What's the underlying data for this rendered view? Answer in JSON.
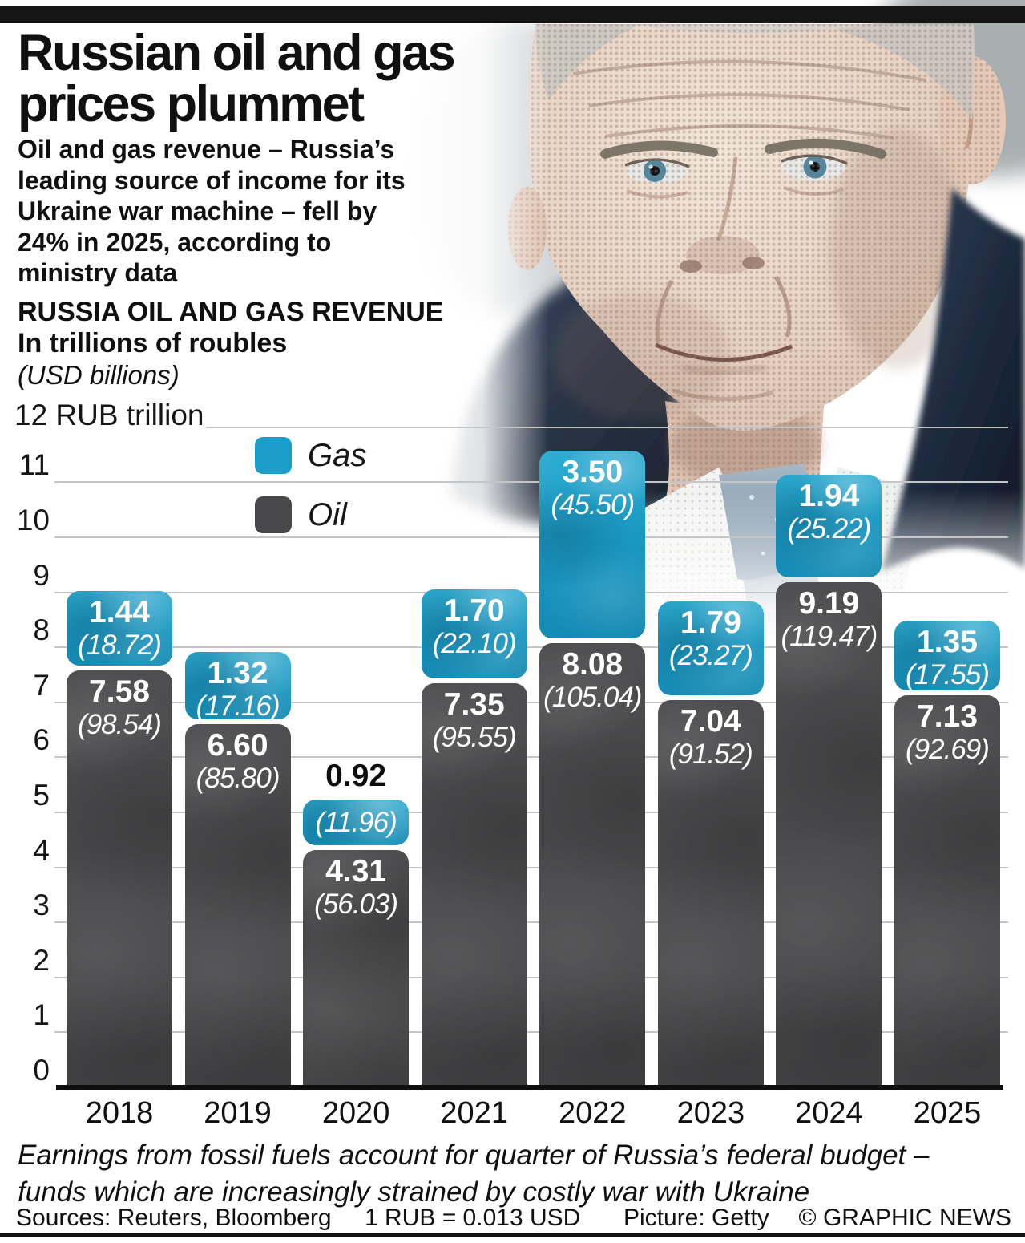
{
  "masthead": {
    "title_line1": "Russian oil and gas",
    "title_line2": "prices plummet",
    "intro_lines": [
      "Oil and gas revenue – Russia’s",
      "leading source of income for its",
      "Ukraine war machine – fell by",
      "24% in 2025, according to",
      "ministry data"
    ]
  },
  "chart_data": {
    "type": "bar",
    "stacked": true,
    "title": "RUSSIA OIL AND GAS REVENUE",
    "unit": "In trillions of roubles",
    "unit_secondary": "(USD billions)",
    "y_axis_top_label": "12 RUB trillion",
    "ylim": [
      0,
      12
    ],
    "y_ticks": [
      0,
      1,
      2,
      3,
      4,
      5,
      6,
      7,
      8,
      9,
      10,
      11,
      12
    ],
    "grid": true,
    "legend_position": "inside-top-left",
    "categories": [
      "2018",
      "2019",
      "2020",
      "2021",
      "2022",
      "2023",
      "2024",
      "2025"
    ],
    "series": [
      {
        "name": "Oil",
        "color": "#4a4a4c",
        "values": [
          7.58,
          6.6,
          4.31,
          7.35,
          8.08,
          7.04,
          9.19,
          7.13
        ],
        "value_labels": [
          "7.58",
          "6.60",
          "4.31",
          "7.35",
          "8.08",
          "7.04",
          "9.19",
          "7.13"
        ],
        "usd_labels": [
          "(98.54)",
          "(85.80)",
          "(56.03)",
          "(95.55)",
          "(105.04)",
          "(91.52)",
          "(119.47)",
          "(92.69)"
        ]
      },
      {
        "name": "Gas",
        "color": "#1b9dc9",
        "values": [
          1.44,
          1.32,
          0.92,
          1.7,
          3.5,
          1.79,
          1.94,
          1.35
        ],
        "value_labels": [
          "1.44",
          "1.32",
          "0.92",
          "1.70",
          "3.50",
          "1.79",
          "1.94",
          "1.35"
        ],
        "usd_labels": [
          "(18.72)",
          "(17.16)",
          "(11.96)",
          "(22.10)",
          "(45.50)",
          "(23.27)",
          "(25.22)",
          "(17.55)"
        ]
      }
    ],
    "legend": [
      {
        "label": "Gas",
        "color": "#1b9dc9"
      },
      {
        "label": "Oil",
        "color": "#48484a"
      }
    ]
  },
  "footer": {
    "note_line1": "Earnings from fossil fuels account for quarter of Russia’s federal budget –",
    "note_line2": "funds which are increasingly strained by costly war with Ukraine"
  },
  "source_row": {
    "sources": "Sources: Reuters, Bloomberg",
    "conversion": "1 RUB = 0.013 USD",
    "picture_credit": "Picture: Getty",
    "copyright": "© GRAPHIC NEWS"
  }
}
